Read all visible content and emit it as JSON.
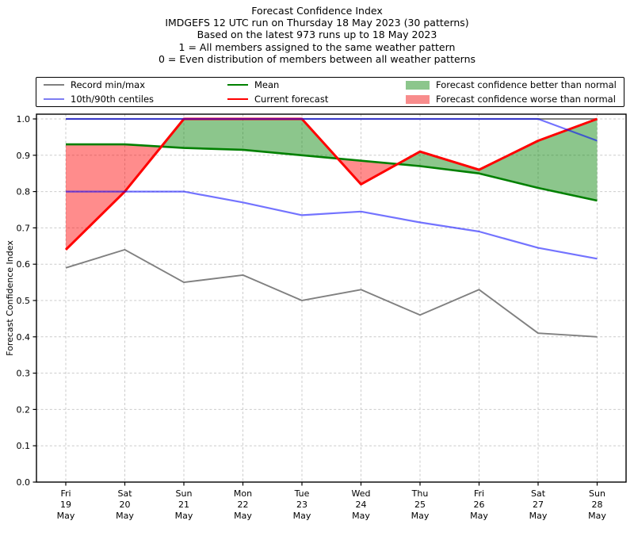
{
  "title": {
    "lines": [
      "Forecast Confidence Index",
      "IMDGEFS 12 UTC run on Thursday 18 May 2023 (30 patterns)",
      "Based on the latest 973 runs up to 18 May 2023",
      "1 = All members assigned to the same weather pattern",
      "0 = Even distribution of members between all weather patterns"
    ]
  },
  "legend": {
    "items": [
      {
        "label": "Record min/max",
        "swatch": "line",
        "color_key": "record"
      },
      {
        "label": "10th/90th centiles",
        "swatch": "line",
        "color_key": "centiles_legend"
      },
      {
        "label": "Mean",
        "swatch": "line",
        "color_key": "mean"
      },
      {
        "label": "Current forecast",
        "swatch": "line",
        "color_key": "current"
      },
      {
        "label": "Forecast confidence better than normal",
        "swatch": "patch",
        "color_key": "better"
      },
      {
        "label": "Forecast confidence worse than normal",
        "swatch": "patch",
        "color_key": "worse"
      }
    ]
  },
  "colors": {
    "record": "#808080",
    "centiles_legend": "#7d7df2",
    "centiles": "#0000ff",
    "mean": "#008000",
    "current": "#ff0000",
    "better": "#8cc68c",
    "worse": "#f88c8c",
    "grid": "#cbcbcb",
    "frame": "#000000"
  },
  "chart_data": {
    "type": "line",
    "title": "Forecast Confidence Index",
    "ylabel": "Forecast Confidence Index",
    "ylim": [
      0.0,
      1.015
    ],
    "grid": true,
    "legend_position": "top",
    "yticks": [
      "1.0",
      "0.9",
      "0.8",
      "0.7",
      "0.6",
      "0.5",
      "0.4",
      "0.3",
      "0.2",
      "0.1",
      "0.0"
    ],
    "x_categories": [
      [
        "Fri",
        "19",
        "May"
      ],
      [
        "Sat",
        "20",
        "May"
      ],
      [
        "Sun",
        "21",
        "May"
      ],
      [
        "Mon",
        "22",
        "May"
      ],
      [
        "Tue",
        "23",
        "May"
      ],
      [
        "Wed",
        "24",
        "May"
      ],
      [
        "Thu",
        "25",
        "May"
      ],
      [
        "Fri",
        "26",
        "May"
      ],
      [
        "Sat",
        "27",
        "May"
      ],
      [
        "Sun",
        "28",
        "May"
      ]
    ],
    "series": [
      {
        "key": "record_max",
        "name": "Record max",
        "color": "#808080",
        "opacity": 1,
        "values": [
          1.0,
          1.0,
          1.0,
          1.0,
          1.0,
          1.0,
          1.0,
          1.0,
          1.0,
          1.0
        ]
      },
      {
        "key": "record_min",
        "name": "Record min",
        "color": "#808080",
        "opacity": 1,
        "values": [
          0.59,
          0.64,
          0.55,
          0.57,
          0.5,
          0.53,
          0.46,
          0.53,
          0.41,
          0.4
        ]
      },
      {
        "key": "mean",
        "name": "Mean",
        "color": "#008000",
        "opacity": 1,
        "values": [
          0.93,
          0.93,
          0.92,
          0.915,
          0.9,
          0.885,
          0.87,
          0.85,
          0.81,
          0.775
        ]
      },
      {
        "key": "current",
        "name": "Current forecast",
        "color": "#ff0000",
        "opacity": 1,
        "values": [
          0.64,
          0.8,
          1.0,
          1.0,
          1.0,
          0.82,
          0.91,
          0.86,
          0.94,
          1.0
        ]
      },
      {
        "key": "p90",
        "name": "90th centile",
        "color": "#0000ff",
        "opacity": 0.55,
        "values": [
          1.0,
          1.0,
          1.0,
          1.0,
          1.0,
          1.0,
          1.0,
          1.0,
          1.0,
          0.94
        ]
      },
      {
        "key": "p10",
        "name": "10th centile",
        "color": "#0000ff",
        "opacity": 0.55,
        "values": [
          0.8,
          0.8,
          0.8,
          0.77,
          0.735,
          0.745,
          0.715,
          0.69,
          0.645,
          0.615
        ]
      }
    ],
    "fills": {
      "better": "area between Current forecast and Mean where current > mean",
      "worse": "area between Current forecast and Mean where current < mean"
    }
  }
}
